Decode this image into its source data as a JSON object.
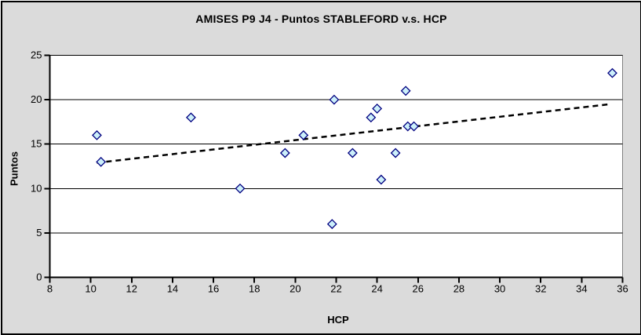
{
  "chart_data": {
    "type": "scatter",
    "title": "AMISES P9 J4 - Puntos STABLEFORD v.s. HCP",
    "xlabel": "HCP",
    "ylabel": "Puntos",
    "xlim": [
      8,
      36
    ],
    "ylim": [
      0,
      25
    ],
    "x_ticks": [
      8,
      10,
      12,
      14,
      16,
      18,
      20,
      22,
      24,
      26,
      28,
      30,
      32,
      34,
      36
    ],
    "y_ticks": [
      0,
      5,
      10,
      15,
      20,
      25
    ],
    "grid": "horizontal",
    "legend": "none",
    "points": [
      {
        "x": 10.3,
        "y": 16
      },
      {
        "x": 10.5,
        "y": 13
      },
      {
        "x": 14.9,
        "y": 18
      },
      {
        "x": 17.3,
        "y": 10
      },
      {
        "x": 19.5,
        "y": 14
      },
      {
        "x": 20.4,
        "y": 16
      },
      {
        "x": 21.8,
        "y": 6
      },
      {
        "x": 21.9,
        "y": 20
      },
      {
        "x": 22.8,
        "y": 14
      },
      {
        "x": 23.7,
        "y": 18
      },
      {
        "x": 24.0,
        "y": 19
      },
      {
        "x": 24.2,
        "y": 11
      },
      {
        "x": 24.9,
        "y": 14
      },
      {
        "x": 25.4,
        "y": 21
      },
      {
        "x": 25.5,
        "y": 17
      },
      {
        "x": 25.8,
        "y": 17
      },
      {
        "x": 35.5,
        "y": 23
      }
    ],
    "trendline": {
      "style": "dashed",
      "x1": 10.3,
      "y1": 12.9,
      "x2": 35.4,
      "y2": 19.5
    },
    "colors": {
      "background": "#DBDBDB",
      "plot_background": "#FFFFFF",
      "plot_border": "#808080",
      "gridline": "#000000",
      "axis": "#000000",
      "trend": "#000000",
      "marker_fill": "#CCF0FA",
      "marker_border": "#000080"
    }
  }
}
